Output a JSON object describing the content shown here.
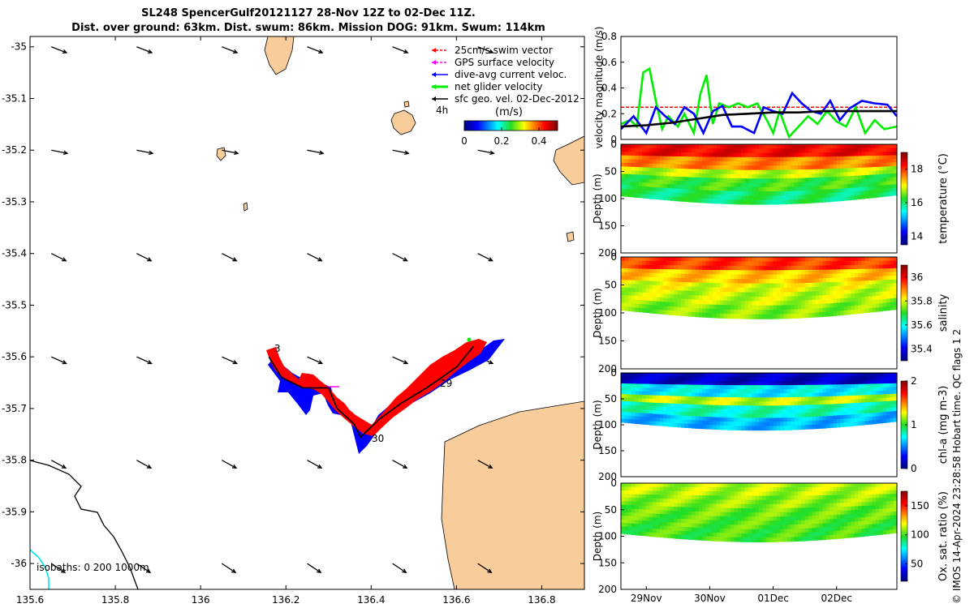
{
  "title": {
    "line1": "SL248 SpencerGulf20121127 28-Nov 12Z to 02-Dec 11Z.",
    "line2": "Dist. over ground: 63km. Dist. swum: 86km. Mission DOG: 91km. Swum: 114km"
  },
  "colors": {
    "land": "#f9cc9b",
    "coast": "#000000",
    "isobath_200": "#00e5ee",
    "swim": "#ff0000",
    "gps": "#ff00ff",
    "dive_avg": "#0000ff",
    "net": "#00ee00",
    "sfc": "#000000"
  },
  "chart_data": [
    {
      "type": "map",
      "name": "glider-track-map",
      "xlim": [
        135.6,
        136.9
      ],
      "ylim": [
        -36.05,
        -34.98
      ],
      "x_ticks": [
        135.6,
        135.8,
        136,
        136.2,
        136.4,
        136.6,
        136.8
      ],
      "x_tick_labels": [
        "135.6",
        "135.8",
        "136",
        "136.2",
        "136.4",
        "136.6",
        "136.8"
      ],
      "y_ticks": [
        -35,
        -35.1,
        -35.2,
        -35.3,
        -35.4,
        -35.5,
        -35.6,
        -35.7,
        -35.8,
        -35.9,
        -36
      ],
      "y_tick_labels": [
        "-35",
        "-35.1",
        "-35.2",
        "-35.3",
        "-35.4",
        "-35.5",
        "-35.6",
        "-35.7",
        "-35.8",
        "-35.9",
        "-36"
      ],
      "legend": {
        "position": "top-right",
        "entries": [
          {
            "label": "25cm/s swim vector",
            "color": "#ff0000"
          },
          {
            "label": "GPS surface velocity",
            "color": "#ff00ff"
          },
          {
            "label": "dive-avg current veloc.",
            "color": "#0000ff"
          },
          {
            "label": "net glider velocity",
            "color": "#00ee00"
          },
          {
            "label": "sfc geo. vel. 02-Dec-2012",
            "color": "#000000"
          }
        ],
        "note": "4h",
        "colorbar_unit": "(m/s)",
        "colorbar_ticks": [
          "0",
          "0.2",
          "0.4"
        ],
        "colorbar_range": [
          0,
          0.5
        ]
      },
      "track_labels": [
        {
          "text": "3",
          "lon": 136.17,
          "lat": -35.59
        },
        {
          "text": "29",
          "lon": 136.56,
          "lat": -35.67
        },
        {
          "text": "30",
          "lon": 136.39,
          "lat": -35.76
        }
      ],
      "track": [
        [
          136.16,
          -35.6
        ],
        [
          136.19,
          -35.64
        ],
        [
          136.24,
          -35.66
        ],
        [
          136.3,
          -35.66
        ],
        [
          136.32,
          -35.7
        ],
        [
          136.36,
          -35.73
        ],
        [
          136.375,
          -35.755
        ],
        [
          136.42,
          -35.72
        ],
        [
          136.47,
          -35.69
        ],
        [
          136.53,
          -35.66
        ],
        [
          136.6,
          -35.62
        ],
        [
          136.64,
          -35.58
        ]
      ],
      "annotation": "isobaths: 0   200  1000m",
      "geo_vectors": {
        "lons": [
          135.65,
          135.85,
          136.05,
          136.25,
          136.45,
          136.65
        ],
        "lats": [
          -35.0,
          -35.2,
          -35.4,
          -35.6,
          -35.8,
          -36.0
        ],
        "u": [
          0.9,
          1.0,
          1.0,
          1.0,
          1.0,
          0.9
        ],
        "v": [
          -0.35,
          -0.2,
          -0.5,
          -0.45,
          -0.55,
          -0.6
        ]
      }
    },
    {
      "type": "line",
      "name": "velocity-magnitude",
      "ylabel": "velocity magnitude (m/s)",
      "ylim": [
        0,
        0.8
      ],
      "y_ticks": [
        0,
        0.2,
        0.4,
        0.6,
        0.8
      ],
      "y_tick_labels": [
        "0",
        "0.2",
        "0.4",
        "0.6",
        "0.8"
      ],
      "xlim": [
        28.6,
        32.95
      ],
      "series": [
        {
          "color": "#ff0000",
          "dash": true,
          "x": [
            28.6,
            32.95
          ],
          "y": [
            0.25,
            0.25
          ]
        },
        {
          "color": "#00ee00",
          "x": [
            28.6,
            28.75,
            28.85,
            28.95,
            29.05,
            29.15,
            29.25,
            29.35,
            29.5,
            29.6,
            29.75,
            29.85,
            29.95,
            30.05,
            30.15,
            30.3,
            30.45,
            30.6,
            30.75,
            30.9,
            31.0,
            31.1,
            31.25,
            31.4,
            31.55,
            31.7,
            31.85,
            32.0,
            32.15,
            32.3,
            32.45,
            32.6,
            32.75,
            32.95
          ],
          "y": [
            0.12,
            0.15,
            0.1,
            0.52,
            0.55,
            0.3,
            0.08,
            0.18,
            0.1,
            0.2,
            0.05,
            0.35,
            0.5,
            0.12,
            0.28,
            0.25,
            0.28,
            0.25,
            0.28,
            0.15,
            0.05,
            0.22,
            0.02,
            0.1,
            0.18,
            0.12,
            0.22,
            0.14,
            0.1,
            0.25,
            0.05,
            0.15,
            0.08,
            0.1
          ]
        },
        {
          "color": "#0000ff",
          "x": [
            28.6,
            28.8,
            29.0,
            29.15,
            29.3,
            29.45,
            29.6,
            29.75,
            29.9,
            30.05,
            30.2,
            30.35,
            30.5,
            30.7,
            30.85,
            31.0,
            31.15,
            31.3,
            31.45,
            31.6,
            31.75,
            31.9,
            32.05,
            32.2,
            32.4,
            32.6,
            32.8,
            32.95
          ],
          "y": [
            0.08,
            0.18,
            0.05,
            0.25,
            0.18,
            0.12,
            0.25,
            0.2,
            0.05,
            0.22,
            0.26,
            0.1,
            0.1,
            0.05,
            0.25,
            0.22,
            0.2,
            0.36,
            0.28,
            0.22,
            0.2,
            0.3,
            0.15,
            0.24,
            0.3,
            0.28,
            0.27,
            0.18
          ]
        },
        {
          "color": "#000000",
          "x": [
            28.6,
            29.0,
            29.4,
            29.8,
            30.2,
            30.6,
            31.0,
            31.4,
            31.8,
            32.2,
            32.6,
            32.95
          ],
          "y": [
            0.1,
            0.11,
            0.13,
            0.16,
            0.19,
            0.2,
            0.21,
            0.21,
            0.22,
            0.22,
            0.22,
            0.22
          ]
        }
      ]
    },
    {
      "type": "heatmap",
      "name": "temperature-section",
      "variable": "temperature",
      "ylabel": "Depth (m)",
      "ylim": [
        0,
        200
      ],
      "y_ticks": [
        0,
        50,
        100,
        150,
        200
      ],
      "colorbar_label": "temperature (°C)",
      "colorbar_range": [
        13.5,
        19
      ],
      "colorbar_ticks": [
        14,
        16,
        18
      ],
      "colorbar_tick_labels": [
        "14",
        "16",
        "18"
      ],
      "profile": [
        18.3,
        17.6,
        16.8,
        16.3,
        16.0
      ]
    },
    {
      "type": "heatmap",
      "name": "salinity-section",
      "variable": "salinity",
      "ylabel": "Depth (m)",
      "ylim": [
        0,
        200
      ],
      "y_ticks": [
        0,
        50,
        100,
        150,
        200
      ],
      "colorbar_label": "salinity",
      "colorbar_range": [
        35.3,
        36.1
      ],
      "colorbar_ticks": [
        35.4,
        35.6,
        35.8,
        36
      ],
      "colorbar_tick_labels": [
        "35.4",
        "35.6",
        "35.8",
        "36"
      ],
      "profile": [
        35.95,
        35.85,
        35.8,
        35.78,
        35.75
      ]
    },
    {
      "type": "heatmap",
      "name": "chla-section",
      "variable": "chla",
      "ylabel": "Depth (m)",
      "ylim": [
        0,
        200
      ],
      "y_ticks": [
        0,
        50,
        100,
        150,
        200
      ],
      "colorbar_label": "chl-a (mg m-3)",
      "colorbar_range": [
        0,
        2
      ],
      "colorbar_ticks": [
        0,
        1,
        2
      ],
      "colorbar_tick_labels": [
        "0",
        "1",
        "2"
      ],
      "profile": [
        0.15,
        0.7,
        1.2,
        0.8,
        0.6
      ]
    },
    {
      "type": "heatmap",
      "name": "oxygen-section",
      "variable": "oxygen",
      "ylabel": "Depth (m)",
      "ylim": [
        0,
        200
      ],
      "y_ticks": [
        0,
        50,
        100,
        150,
        200
      ],
      "colorbar_label": "Ox. sat. ratio (%)",
      "colorbar_range": [
        20,
        175
      ],
      "colorbar_ticks": [
        50,
        100,
        150
      ],
      "colorbar_tick_labels": [
        "50",
        "100",
        "150"
      ],
      "profile": [
        112,
        108,
        104,
        102,
        100
      ]
    }
  ],
  "y_tick_text": [
    "0",
    "50",
    "100",
    "150",
    "200"
  ],
  "time_axis": {
    "ticks": [
      29,
      30,
      31,
      32
    ],
    "labels": [
      "29Nov",
      "30Nov",
      "01Dec",
      "02Dec"
    ]
  },
  "side_note": "© IMOS 14-Apr-2024 23:28:58 Hobart time. QC flags 1  2"
}
